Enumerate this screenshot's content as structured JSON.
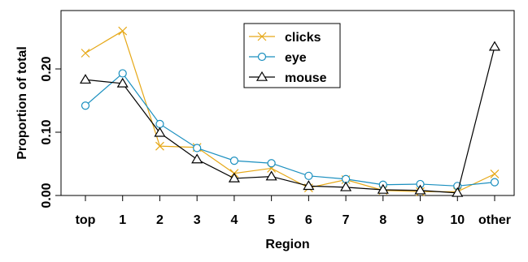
{
  "chart_data": {
    "type": "line",
    "title": "",
    "xlabel": "Region",
    "ylabel": "Proportion of total",
    "categories": [
      "top",
      "1",
      "2",
      "3",
      "4",
      "5",
      "6",
      "7",
      "8",
      "9",
      "10",
      "other"
    ],
    "ylim": [
      0,
      0.26
    ],
    "yticks": [
      0.0,
      0.1,
      0.2
    ],
    "ytick_labels": [
      "0.00",
      "0.10",
      "0.20"
    ],
    "grid": false,
    "legend_position": "top-center",
    "series": [
      {
        "name": "clicks",
        "color": "#E6A817",
        "marker": "x",
        "values": [
          0.225,
          0.26,
          0.078,
          0.076,
          0.035,
          0.043,
          0.012,
          0.025,
          0.008,
          0.006,
          0.006,
          0.034
        ]
      },
      {
        "name": "eye",
        "color": "#1A8FBF",
        "marker": "circle",
        "values": [
          0.142,
          0.193,
          0.113,
          0.075,
          0.055,
          0.051,
          0.031,
          0.026,
          0.017,
          0.018,
          0.015,
          0.021
        ]
      },
      {
        "name": "mouse",
        "color": "#000000",
        "marker": "triangle",
        "values": [
          0.183,
          0.177,
          0.099,
          0.057,
          0.027,
          0.03,
          0.015,
          0.013,
          0.009,
          0.008,
          0.004,
          0.235
        ]
      }
    ]
  }
}
